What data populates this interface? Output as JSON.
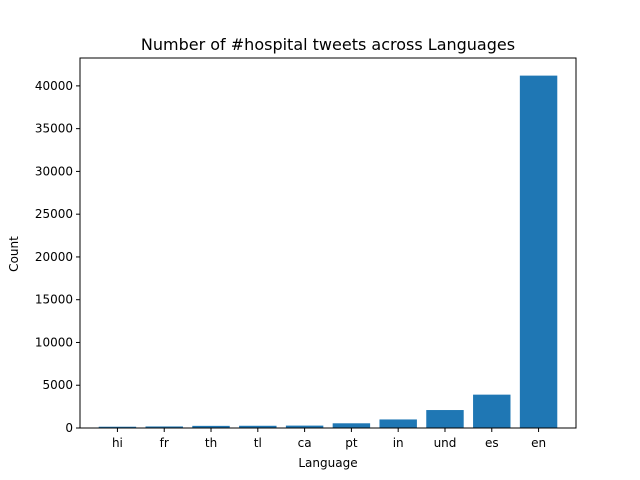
{
  "chart_data": {
    "type": "bar",
    "title": "Number of #hospital tweets across Languages",
    "xlabel": "Language",
    "ylabel": "Count",
    "categories": [
      "hi",
      "fr",
      "th",
      "tl",
      "ca",
      "pt",
      "in",
      "und",
      "es",
      "en"
    ],
    "values": [
      150,
      180,
      250,
      260,
      280,
      550,
      1000,
      2100,
      3900,
      41200
    ],
    "ylim": [
      0,
      43260
    ],
    "yticks": [
      0,
      5000,
      10000,
      15000,
      20000,
      25000,
      30000,
      35000,
      40000
    ],
    "grid": false,
    "bar_color": "#1f77b4"
  }
}
